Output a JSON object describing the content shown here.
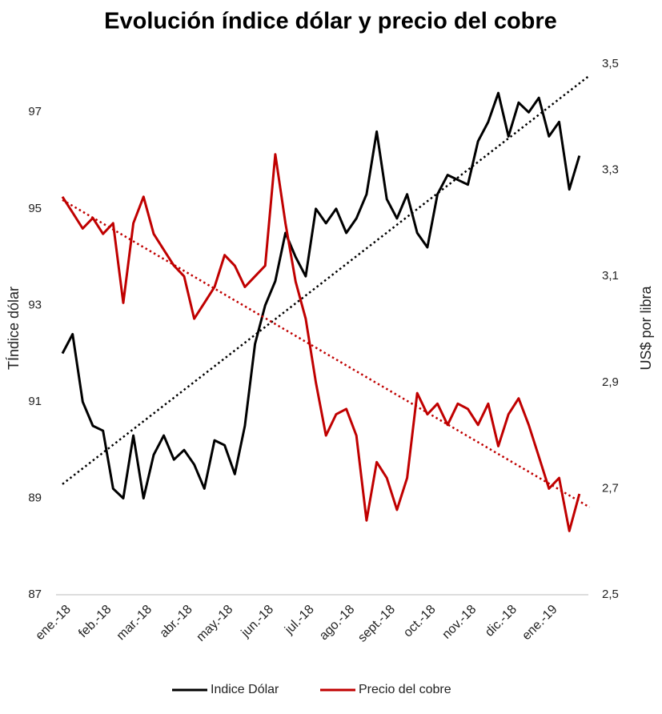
{
  "chart_data": {
    "type": "line",
    "title": "Evolución índice dólar y precio del cobre",
    "ylabel": "TÍndice dólar",
    "y2label": "US$ por libra",
    "categories": [
      "ene.-18",
      null,
      null,
      null,
      "feb.-18",
      null,
      null,
      null,
      "mar.-18",
      null,
      null,
      null,
      "abr.-18",
      null,
      null,
      null,
      "may.-18",
      null,
      null,
      null,
      "jun.-18",
      null,
      null,
      null,
      "jul.-18",
      null,
      null,
      null,
      "ago.-18",
      null,
      null,
      null,
      "sept.-18",
      null,
      null,
      null,
      "oct.-18",
      null,
      null,
      null,
      "nov.-18",
      null,
      null,
      null,
      "dic.-18",
      null,
      null,
      null,
      "ene.-19",
      null,
      null,
      null
    ],
    "series": [
      {
        "name": "Indice Dólar",
        "color": "#000000",
        "trendline": true,
        "values": [
          92.0,
          92.4,
          91.0,
          90.5,
          90.4,
          89.2,
          89.0,
          90.3,
          89.0,
          89.9,
          90.3,
          89.8,
          90.0,
          89.7,
          89.2,
          90.2,
          90.1,
          89.5,
          90.5,
          92.2,
          93.0,
          93.5,
          94.5,
          94.0,
          93.6,
          95.0,
          94.7,
          95.0,
          94.5,
          94.8,
          95.3,
          96.6,
          95.2,
          94.8,
          95.3,
          94.5,
          94.2,
          95.3,
          95.7,
          95.6,
          95.5,
          96.4,
          96.8,
          97.4,
          96.5,
          97.2,
          97.0,
          97.3,
          96.5,
          96.8,
          95.4,
          96.1
        ]
      },
      {
        "name": "Precio del cobre",
        "color": "#c00000",
        "axis": "y2",
        "trendline": true,
        "values": [
          3.25,
          3.22,
          3.19,
          3.21,
          3.18,
          3.2,
          3.05,
          3.2,
          3.25,
          3.18,
          3.15,
          3.12,
          3.1,
          3.02,
          3.05,
          3.08,
          3.14,
          3.12,
          3.08,
          3.1,
          3.12,
          3.33,
          3.2,
          3.09,
          3.02,
          2.9,
          2.8,
          2.84,
          2.85,
          2.8,
          2.64,
          2.75,
          2.72,
          2.66,
          2.72,
          2.88,
          2.84,
          2.86,
          2.82,
          2.86,
          2.85,
          2.82,
          2.86,
          2.78,
          2.84,
          2.87,
          2.82,
          2.76,
          2.7,
          2.72,
          2.62,
          2.69
        ]
      }
    ],
    "ylim": [
      87,
      98
    ],
    "yticks": [
      87,
      89,
      91,
      93,
      95,
      97
    ],
    "y2lim": [
      2.5,
      3.5
    ],
    "y2ticks": [
      {
        "value": 2.5,
        "label": "2,5"
      },
      {
        "value": 2.7,
        "label": "2,7"
      },
      {
        "value": 2.9,
        "label": "2,9"
      },
      {
        "value": 3.1,
        "label": "3,1"
      },
      {
        "value": 3.3,
        "label": "3,3"
      },
      {
        "value": 3.5,
        "label": "3,5"
      }
    ],
    "legend": "bottom"
  }
}
